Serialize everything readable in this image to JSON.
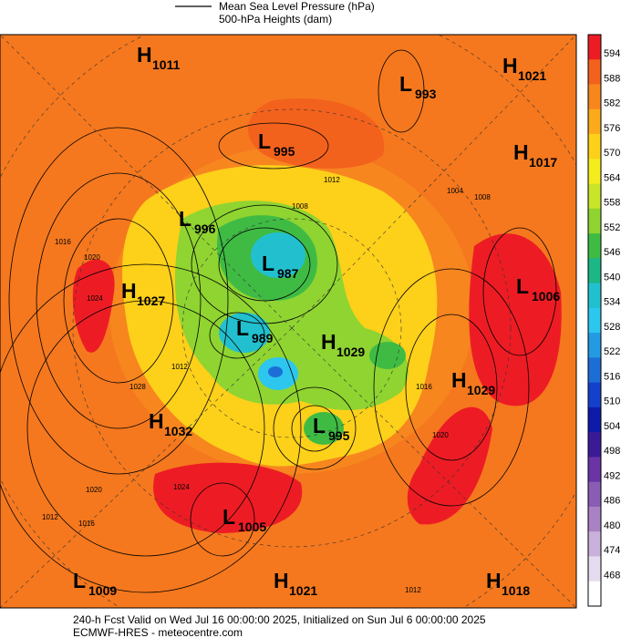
{
  "header": {
    "line1": "Mean Sea Level Pressure (hPa)",
    "line2": "500-hPa Heights (dam)"
  },
  "centers": [
    {
      "kind": "H",
      "value": 1011
    },
    {
      "kind": "L",
      "value": 993
    },
    {
      "kind": "H",
      "value": 1021
    },
    {
      "kind": "L",
      "value": 995
    },
    {
      "kind": "H",
      "value": 1017
    },
    {
      "kind": "L",
      "value": 996
    },
    {
      "kind": "L",
      "value": 987
    },
    {
      "kind": "H",
      "value": 1027
    },
    {
      "kind": "L",
      "value": 1006
    },
    {
      "kind": "L",
      "value": 989
    },
    {
      "kind": "H",
      "value": 1029
    },
    {
      "kind": "H",
      "value": 1029
    },
    {
      "kind": "H",
      "value": 1032
    },
    {
      "kind": "L",
      "value": 995
    },
    {
      "kind": "L",
      "value": 1005
    },
    {
      "kind": "L",
      "value": 1009
    },
    {
      "kind": "H",
      "value": 1021
    },
    {
      "kind": "H",
      "value": 1018
    }
  ],
  "isobar_labels": [
    1012,
    1008,
    1016,
    1020,
    1024,
    1012,
    1028,
    1024,
    1020,
    1016,
    1012,
    1004,
    1008,
    1016,
    1020,
    1012
  ],
  "colorbar": {
    "labels": [
      594,
      588,
      582,
      576,
      570,
      564,
      558,
      552,
      546,
      540,
      534,
      528,
      522,
      516,
      510,
      504,
      498,
      492,
      486,
      480,
      474,
      468
    ],
    "colors": [
      "#ed1c24",
      "#f3621d",
      "#f7861f",
      "#fbaa1b",
      "#fdd01a",
      "#f5ec1e",
      "#c9e52a",
      "#8fd431",
      "#3fbb44",
      "#1db685",
      "#22c0cf",
      "#2cc6ef",
      "#239ae2",
      "#1c6ed6",
      "#1440cb",
      "#0e1aa8",
      "#3b1a98",
      "#6a34a6",
      "#8a5db4",
      "#a982c4",
      "#c8b1da",
      "#e6dcef",
      "#ffffff"
    ]
  },
  "footer": {
    "line1": "240-h Fcst Valid on Wed Jul 16 00:00:00 2025, Initialized on Sun Jul  6 00:00:00 2025",
    "line2": "ECMWF-HRES  - meteocentre.com"
  }
}
